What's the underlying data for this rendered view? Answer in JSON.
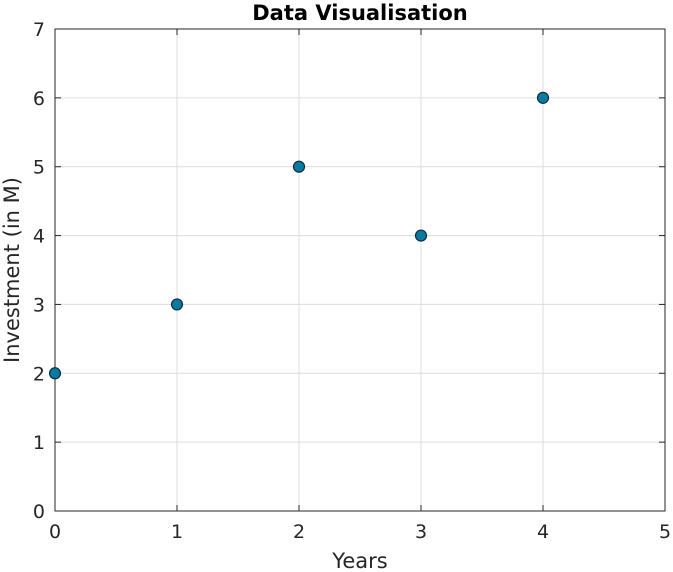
{
  "chart_data": {
    "type": "scatter",
    "title": "Data Visualisation",
    "xlabel": "Years",
    "ylabel": "Investment (in M)",
    "x": [
      0,
      1,
      2,
      3,
      4
    ],
    "y": [
      2,
      3,
      5,
      4,
      6
    ],
    "xlim": [
      0,
      5
    ],
    "ylim": [
      0,
      7
    ],
    "xticks": [
      "0",
      "1",
      "2",
      "3",
      "4",
      "5"
    ],
    "yticks": [
      "0",
      "1",
      "2",
      "3",
      "4",
      "5",
      "6",
      "7"
    ],
    "grid": true,
    "colors": {
      "marker_fill": "#0b7aa3",
      "marker_edge": "#0d2f3d",
      "grid": "#dcdcdc",
      "axis": "#262626"
    }
  }
}
